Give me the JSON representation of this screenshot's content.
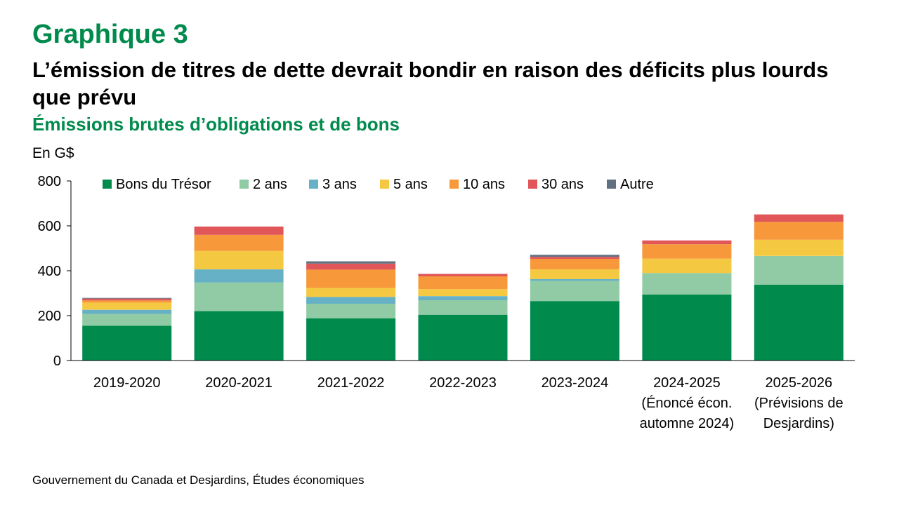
{
  "header": {
    "kicker": "Graphique 3",
    "title": "L’émission de titres de dette devrait bondir en raison des déficits plus lourds que prévu",
    "subtitle": "Émissions brutes d’obligations et de bons",
    "unit": "En G$"
  },
  "source": "Gouvernement du Canada et Desjardins, Études économiques",
  "colors": {
    "title_green": "#008a4c"
  },
  "chart_data": {
    "type": "bar",
    "stacked": true,
    "categories": [
      [
        "2019-2020"
      ],
      [
        "2020-2021"
      ],
      [
        "2021-2022"
      ],
      [
        "2022-2023"
      ],
      [
        "2023-2024"
      ],
      [
        "2024-2025",
        "(Énoncé écon.",
        "automne 2024)"
      ],
      [
        "2025-2026",
        "(Prévisions de",
        "Desjardins)"
      ]
    ],
    "ylabel": "En G$",
    "ylim": [
      0,
      800
    ],
    "yticks": [
      0,
      200,
      400,
      600,
      800
    ],
    "grid": false,
    "legend_position": "top",
    "series": [
      {
        "name": "Bons du Trésor",
        "color": "#008a4c",
        "values": [
          155,
          220,
          188,
          204,
          265,
          294,
          338
        ]
      },
      {
        "name": "2 ans",
        "color": "#90cba5",
        "values": [
          53,
          128,
          65,
          65,
          90,
          96,
          128
        ]
      },
      {
        "name": "3 ans",
        "color": "#66b1c6",
        "values": [
          18,
          58,
          30,
          18,
          8,
          0,
          0
        ]
      },
      {
        "name": "5 ans",
        "color": "#f5c842",
        "values": [
          32,
          82,
          40,
          31,
          43,
          64,
          72
        ]
      },
      {
        "name": "10 ans",
        "color": "#f7993b",
        "values": [
          10,
          72,
          82,
          57,
          47,
          64,
          80
        ]
      },
      {
        "name": "30 ans",
        "color": "#e15759",
        "values": [
          8,
          37,
          27,
          11,
          9,
          17,
          33
        ]
      },
      {
        "name": "Autre",
        "color": "#607080",
        "values": [
          3,
          0,
          10,
          0,
          9,
          0,
          0
        ]
      }
    ]
  }
}
